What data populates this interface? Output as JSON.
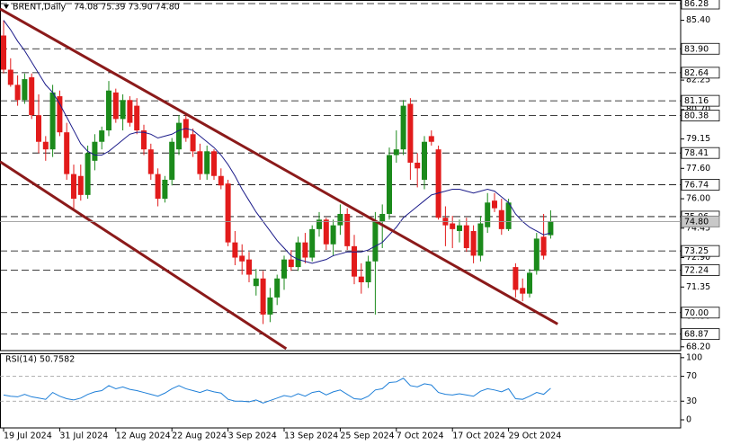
{
  "chart_data": [
    {
      "type": "candlestick",
      "title": "BRENT,Daily",
      "ohlc_label": "74.08 75.39 73.90 74.80",
      "categories": [
        "19 Jul 2024",
        null,
        null,
        null,
        null,
        null,
        null,
        null,
        "31 Jul 2024",
        null,
        null,
        null,
        null,
        null,
        null,
        null,
        "12 Aug 2024",
        null,
        null,
        null,
        null,
        null,
        null,
        null,
        "22 Aug 2024",
        null,
        null,
        null,
        null,
        null,
        null,
        null,
        "3 Sep 2024",
        null,
        null,
        null,
        null,
        null,
        null,
        null,
        "13 Sep 2024",
        null,
        null,
        null,
        null,
        null,
        null,
        null,
        "25 Sep 2024",
        null,
        null,
        null,
        null,
        null,
        null,
        null,
        "7 Oct 2024",
        null,
        null,
        null,
        null,
        null,
        null,
        null,
        "17 Oct 2024",
        null,
        null,
        null,
        null,
        null,
        null,
        null,
        "29 Oct 2024",
        null,
        null,
        null,
        null,
        null,
        null
      ],
      "open": [
        84.6,
        82.8,
        82.0,
        81.2,
        82.4,
        80.4,
        79.0,
        78.6,
        81.4,
        79.5,
        77.3,
        77.2,
        76.2,
        78.0,
        79.0,
        79.6,
        81.6,
        80.2,
        81.2,
        80.9,
        79.6,
        78.6,
        77.3,
        76.0,
        77.0,
        78.6,
        80.2,
        79.4,
        78.5,
        77.3,
        78.5,
        77.2,
        76.8,
        73.7,
        73.0,
        72.8,
        71.4,
        71.8,
        69.9,
        70.8,
        71.8,
        72.8,
        72.4,
        73.7,
        72.9,
        74.4,
        74.9,
        73.6,
        74.6,
        75.2,
        73.5,
        71.9,
        71.6,
        72.7,
        74.8,
        75.2,
        78.3,
        78.6,
        81.0,
        77.9,
        77.0,
        79.3,
        78.6,
        75.0,
        74.7,
        74.3,
        74.6,
        74.3,
        73.0,
        74.5,
        75.9,
        75.4,
        74.4,
        72.4,
        71.3,
        71.0,
        72.2,
        74.0,
        74.08
      ],
      "high": [
        85.4,
        83.4,
        82.5,
        82.6,
        82.6,
        81.5,
        79.3,
        82.0,
        81.7,
        80.0,
        77.8,
        77.8,
        78.8,
        79.4,
        79.8,
        82.2,
        81.8,
        81.5,
        81.4,
        81.3,
        79.9,
        78.9,
        77.6,
        77.2,
        79.2,
        80.4,
        80.5,
        79.7,
        78.9,
        78.8,
        78.6,
        77.6,
        77.0,
        74.3,
        73.6,
        73.2,
        72.3,
        72.2,
        71.3,
        72.0,
        73.0,
        73.3,
        74.0,
        74.2,
        74.6,
        75.3,
        75.0,
        74.9,
        75.7,
        75.5,
        74.1,
        72.6,
        73.0,
        75.3,
        75.7,
        78.7,
        79.6,
        81.2,
        81.3,
        78.4,
        79.3,
        79.6,
        78.8,
        75.6,
        75.1,
        74.9,
        75.0,
        74.6,
        75.1,
        76.3,
        76.3,
        76.0,
        76.0,
        72.6,
        71.8,
        72.3,
        74.2,
        75.2,
        75.39
      ],
      "low": [
        82.6,
        81.9,
        80.9,
        81.0,
        80.2,
        78.4,
        78.0,
        78.2,
        79.3,
        77.0,
        75.4,
        75.9,
        76.0,
        77.5,
        78.6,
        79.3,
        80.0,
        79.6,
        79.8,
        79.4,
        78.3,
        77.0,
        75.6,
        75.8,
        76.7,
        78.3,
        79.0,
        78.2,
        77.0,
        77.0,
        77.0,
        76.5,
        73.5,
        72.5,
        72.0,
        71.6,
        70.9,
        69.4,
        69.5,
        70.4,
        71.2,
        72.2,
        72.2,
        72.6,
        72.7,
        74.0,
        73.3,
        73.0,
        74.1,
        73.3,
        71.5,
        71.0,
        71.3,
        69.9,
        73.4,
        74.9,
        77.9,
        78.3,
        77.0,
        76.6,
        76.5,
        78.8,
        74.9,
        73.5,
        73.4,
        73.7,
        73.2,
        72.6,
        72.7,
        74.2,
        75.3,
        74.1,
        74.3,
        70.8,
        70.6,
        70.8,
        72.0,
        72.8,
        73.9
      ],
      "close": [
        82.8,
        82.0,
        81.2,
        82.3,
        80.4,
        79.0,
        78.6,
        81.6,
        79.5,
        77.3,
        76.0,
        76.2,
        78.4,
        79.0,
        79.6,
        81.7,
        80.2,
        81.2,
        80.0,
        79.6,
        78.6,
        77.3,
        76.0,
        77.0,
        79.0,
        80.0,
        79.2,
        78.5,
        77.3,
        78.5,
        77.2,
        76.7,
        73.7,
        72.9,
        72.7,
        72.0,
        71.8,
        69.9,
        70.8,
        71.8,
        72.8,
        72.4,
        73.7,
        72.9,
        74.4,
        74.9,
        73.6,
        74.6,
        75.2,
        73.5,
        71.9,
        71.6,
        72.7,
        74.8,
        75.2,
        78.3,
        78.6,
        80.9,
        77.9,
        77.6,
        79.0,
        79.0,
        75.0,
        74.6,
        74.4,
        74.6,
        73.4,
        73.0,
        74.7,
        75.8,
        75.5,
        74.4,
        75.8,
        71.2,
        71.0,
        72.1,
        73.9,
        73.0,
        74.8
      ],
      "up_color": "#1b8a1b",
      "down_color": "#e21b1b",
      "overlay": {
        "color": "#1c1c8a",
        "values": [
          85.4,
          84.9,
          84.3,
          83.8,
          83.2,
          82.6,
          82.0,
          81.6,
          81.0,
          80.3,
          79.6,
          78.9,
          78.5,
          78.3,
          78.3,
          78.5,
          78.8,
          79.1,
          79.4,
          79.5,
          79.5,
          79.4,
          79.2,
          79.3,
          79.4,
          79.6,
          79.7,
          79.6,
          79.3,
          79.0,
          78.7,
          78.3,
          77.8,
          77.2,
          76.5,
          75.9,
          75.3,
          74.8,
          74.3,
          73.8,
          73.4,
          73.0,
          72.8,
          72.7,
          72.6,
          72.7,
          72.8,
          73.0,
          73.1,
          73.2,
          73.2,
          73.2,
          73.3,
          73.5,
          73.7,
          74.1,
          74.5,
          75.0,
          75.3,
          75.6,
          75.9,
          76.2,
          76.3,
          76.4,
          76.5,
          76.5,
          76.4,
          76.3,
          76.4,
          76.5,
          76.4,
          76.1,
          75.8,
          75.2,
          74.8,
          74.5,
          74.3,
          74.1,
          74.2
        ]
      },
      "trendline_color": "#8b1a1a",
      "trendlines": [
        {
          "points": [
            [
              -0.5,
              86.0
            ],
            [
              79,
              69.4
            ]
          ]
        },
        {
          "points": [
            [
              -0.5,
              77.95
            ],
            [
              40.3,
              68.1
            ]
          ]
        }
      ],
      "levels": [
        {
          "value": 86.28,
          "label": "86.28"
        },
        {
          "value": 83.9,
          "label": "83.90"
        },
        {
          "value": 82.64,
          "label": "82.64"
        },
        {
          "value": 81.16,
          "label": "81.16"
        },
        {
          "value": 80.38,
          "label": "80.38"
        },
        {
          "value": 78.41,
          "label": "78.41"
        },
        {
          "value": 76.74,
          "label": "76.74"
        },
        {
          "value": 75.06,
          "label": "75.06"
        },
        {
          "value": 73.25,
          "label": "73.25"
        },
        {
          "value": 72.24,
          "label": "72.24"
        },
        {
          "value": 70.0,
          "label": "70.00"
        },
        {
          "value": 68.87,
          "label": "68.87"
        }
      ],
      "current": {
        "value": 74.8,
        "label": "74.80"
      },
      "ylim": [
        68.0,
        86.47
      ],
      "yticks": [
        {
          "value": 85.4,
          "label": "85.40"
        },
        {
          "value": 82.25,
          "label": "82.25"
        },
        {
          "value": 80.7,
          "label": "80.70"
        },
        {
          "value": 79.15,
          "label": "79.15"
        },
        {
          "value": 77.6,
          "label": "77.60"
        },
        {
          "value": 76.0,
          "label": "76.00"
        },
        {
          "value": 74.45,
          "label": "74.45"
        },
        {
          "value": 72.9,
          "label": "72.90"
        },
        {
          "value": 71.35,
          "label": "71.35"
        },
        {
          "value": 69.8,
          "label": "69.80"
        },
        {
          "value": 68.2,
          "label": "68.20"
        }
      ]
    },
    {
      "type": "line",
      "title": "RSI(14) 50.7582",
      "color": "#1e7fd8",
      "values": [
        40,
        38,
        37,
        41,
        37,
        35,
        33,
        44,
        38,
        34,
        32,
        35,
        41,
        45,
        47,
        55,
        50,
        53,
        49,
        47,
        44,
        41,
        38,
        43,
        50,
        55,
        50,
        47,
        44,
        48,
        45,
        43,
        33,
        30,
        30,
        29,
        32,
        27,
        31,
        35,
        39,
        37,
        42,
        38,
        44,
        46,
        40,
        45,
        48,
        41,
        34,
        33,
        38,
        48,
        50,
        60,
        61,
        67,
        55,
        53,
        58,
        56,
        44,
        41,
        40,
        42,
        40,
        38,
        46,
        50,
        48,
        45,
        50,
        34,
        33,
        38,
        44,
        41,
        50.7582
      ],
      "level_lines": [
        70,
        30
      ],
      "ylim": [
        -13,
        107
      ],
      "yticks": [
        100,
        70,
        30,
        0
      ]
    }
  ]
}
